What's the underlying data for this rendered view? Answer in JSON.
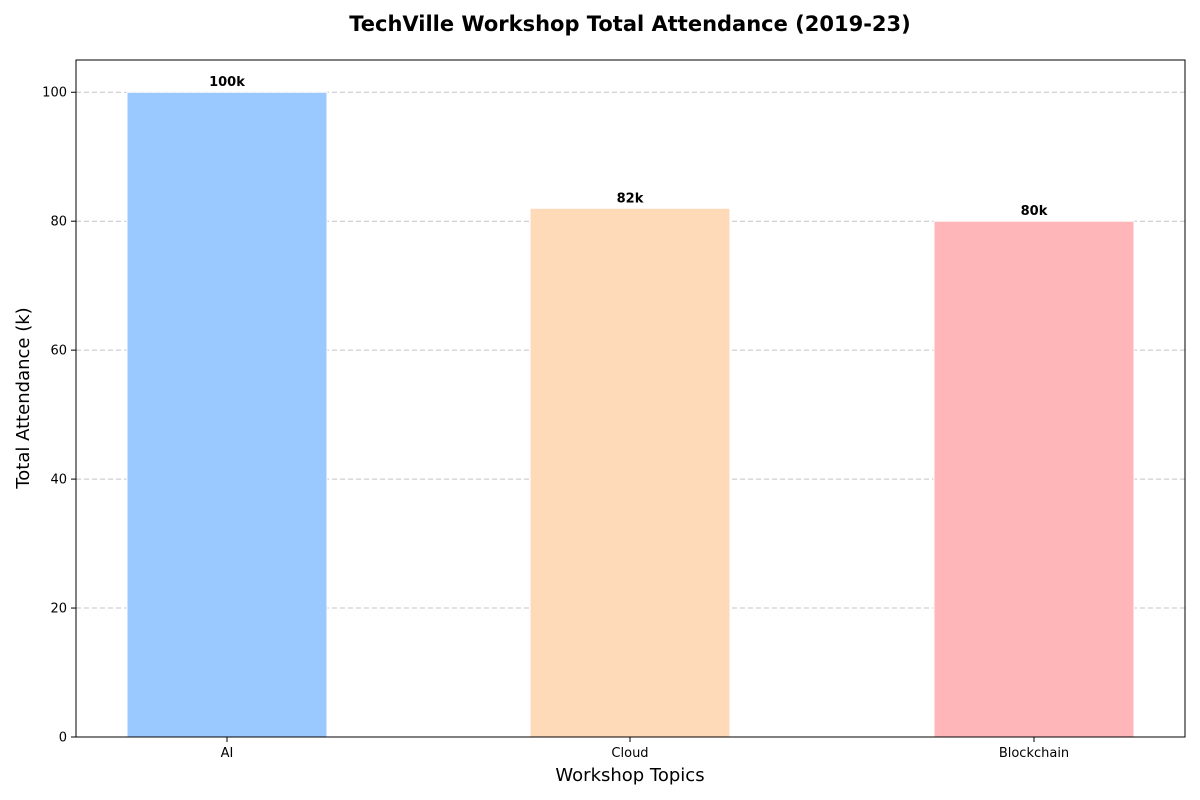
{
  "chart_data": {
    "type": "bar",
    "title": "TechVille Workshop Total Attendance (2019-23)",
    "xlabel": "Workshop Topics",
    "ylabel": "Total Attendance (k)",
    "categories": [
      "AI",
      "Cloud",
      "Blockchain"
    ],
    "values": [
      100,
      82,
      80
    ],
    "data_labels": [
      "100k",
      "82k",
      "80k"
    ],
    "colors": [
      "#99c9ff",
      "#ffdab9",
      "#ffb6b9"
    ],
    "ylim": [
      0,
      105
    ],
    "yticks": [
      0,
      20,
      40,
      60,
      80,
      100
    ],
    "ytick_labels": [
      "0",
      "20",
      "40",
      "60",
      "80",
      "100"
    ],
    "grid": "y-dashed",
    "legend": "none"
  }
}
